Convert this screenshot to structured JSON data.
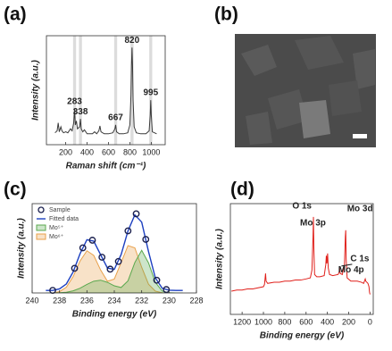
{
  "chart_data": [
    {
      "type": "line",
      "label": "(a)",
      "xlabel": "Raman shift (cm⁻¹)",
      "ylabel": "Intensity (a.u.)",
      "xlim": [
        20,
        1130
      ],
      "ylim": [
        0,
        110
      ],
      "xticks": [
        200,
        400,
        600,
        800,
        1000
      ],
      "peaks": [
        283,
        338,
        667,
        820,
        995
      ],
      "band_color": "#dcdcdc",
      "x": [
        100,
        120,
        130,
        140,
        155,
        165,
        180,
        200,
        220,
        245,
        260,
        275,
        283,
        290,
        300,
        310,
        330,
        338,
        345,
        360,
        375,
        400,
        450,
        470,
        490,
        510,
        520,
        530,
        560,
        600,
        640,
        660,
        667,
        675,
        700,
        740,
        780,
        800,
        810,
        815,
        820,
        825,
        830,
        840,
        860,
        900,
        950,
        980,
        990,
        995,
        1000,
        1010,
        1050
      ],
      "series": [
        {
          "color": "#3a3a3a",
          "style": "line",
          "values": [
            12,
            14,
            22,
            13,
            18,
            14,
            12,
            13,
            12,
            16,
            14,
            22,
            36,
            20,
            24,
            16,
            18,
            26,
            16,
            13,
            15,
            11,
            11,
            13,
            11,
            14,
            19,
            13,
            11,
            11,
            12,
            16,
            20,
            13,
            11,
            11,
            12,
            20,
            50,
            80,
            98,
            80,
            45,
            18,
            12,
            11,
            11,
            14,
            30,
            45,
            30,
            13,
            11
          ]
        }
      ]
    },
    {
      "type": "image",
      "label": "(b)"
    },
    {
      "type": "line",
      "label": "(c)",
      "xlabel": "Binding energy (eV)",
      "ylabel": "Intensity (a.u.)",
      "xlim": [
        240,
        228
      ],
      "ylim": [
        0,
        105
      ],
      "xticks": [
        240,
        238,
        236,
        234,
        232,
        230,
        228
      ],
      "x": [
        239,
        238.5,
        238,
        237.5,
        237,
        236.5,
        236,
        235.5,
        235,
        234.5,
        234,
        233.5,
        233,
        232.5,
        232,
        231.5,
        231,
        230.5,
        230,
        229.5,
        229
      ],
      "series": [
        {
          "name": "Mo⁶⁺",
          "color": "#e8a04a",
          "style": "area",
          "values": [
            0,
            0,
            1.6,
            6.8,
            19.4,
            37.6,
            49.6,
            44.1,
            27.0,
            13.8,
            16.3,
            35.8,
            55.7,
            53.0,
            30.2,
            10.3,
            2.1,
            0.3,
            0,
            0,
            0
          ]
        },
        {
          "name": "Mo⁵⁺",
          "color": "#5aa84e",
          "style": "area",
          "values": [
            0,
            0,
            0.2,
            0.8,
            2.5,
            5.6,
            10.0,
            13.8,
            15.0,
            12.5,
            8.4,
            6.4,
            14.2,
            35.8,
            50.1,
            35.3,
            12.5,
            2.2,
            0.2,
            0,
            0
          ]
        },
        {
          "name": "Fitted data",
          "color": "#1c3fc0",
          "style": "line",
          "values": [
            3,
            3,
            4.8,
            10.6,
            24.9,
            46.2,
            62.6,
            60.9,
            45.0,
            29.3,
            27.7,
            45.2,
            72.9,
            91.8,
            83.3,
            48.6,
            17.6,
            5.5,
            3.2,
            3,
            3
          ]
        },
        {
          "name": "Sample",
          "color": "#1a1f4d",
          "style": "markers",
          "x": [
            238.5,
            236.9,
            236.3,
            235.6,
            234.9,
            234.3,
            233.7,
            233.0,
            232.4,
            231.7,
            230.9,
            230.2
          ],
          "values": [
            3,
            29,
            53,
            62,
            42,
            28,
            37,
            73,
            93,
            63,
            15,
            4
          ]
        }
      ],
      "legend_order": [
        3,
        2,
        1,
        0
      ]
    },
    {
      "type": "line",
      "label": "(d)",
      "xlabel": "Binding energy (eV)",
      "ylabel": "Intensity (a.u.)",
      "xlim": [
        1310,
        -30
      ],
      "ylim": [
        0,
        100
      ],
      "xticks": [
        1200,
        1000,
        800,
        600,
        400,
        200,
        0
      ],
      "annotations": [
        "O 1s",
        "Mo 3d",
        "Mo 3p",
        "C 1s",
        "Mo 4p"
      ],
      "x": [
        1300,
        1250,
        1200,
        1150,
        1100,
        1050,
        1000,
        990,
        980,
        975,
        960,
        900,
        850,
        800,
        750,
        700,
        650,
        600,
        560,
        545,
        535,
        531,
        527,
        520,
        500,
        470,
        430,
        415,
        410,
        405,
        398,
        392,
        380,
        350,
        300,
        290,
        285,
        280,
        260,
        240,
        232,
        228,
        224,
        215,
        180,
        120,
        80,
        60,
        45,
        40,
        20,
        10,
        5,
        0
      ],
      "series": [
        {
          "color": "#e0201b",
          "style": "line",
          "values": [
            21,
            22,
            22,
            23,
            23,
            24,
            25,
            27,
            37,
            30,
            28,
            29,
            29,
            30,
            30,
            31,
            31,
            32,
            33,
            40,
            70,
            88,
            60,
            36,
            34,
            34,
            35,
            45,
            53,
            46,
            55,
            42,
            36,
            35,
            36,
            38,
            42,
            37,
            36,
            45,
            70,
            76,
            50,
            33,
            30,
            30,
            29,
            28,
            32,
            30,
            28,
            25,
            20,
            18
          ]
        }
      ]
    }
  ]
}
